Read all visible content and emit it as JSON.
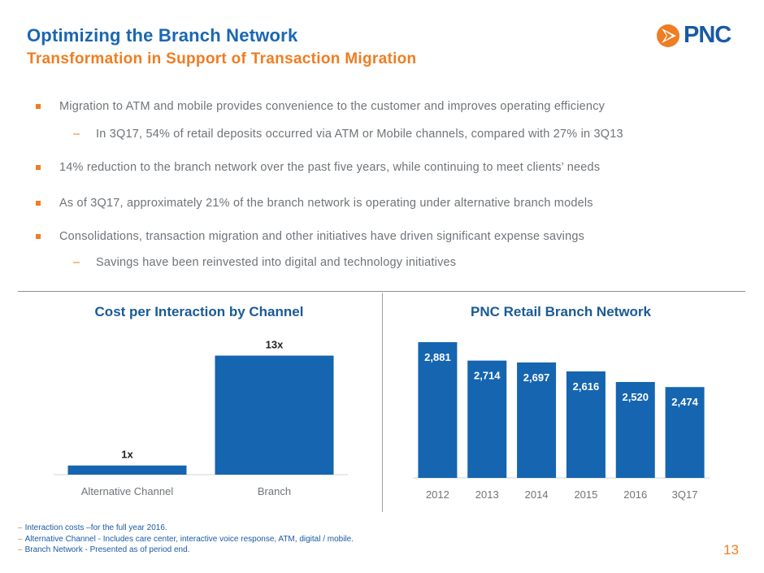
{
  "header": {
    "title": "Optimizing the Branch Network",
    "subtitle": "Transformation in Support of Transaction Migration",
    "logo_text": "PNC",
    "brand_blue": "#1a67b1",
    "brand_orange": "#ef7d22"
  },
  "bullets": [
    {
      "level": 1,
      "text": "Migration to ATM and mobile provides convenience to the customer and improves operating efficiency"
    },
    {
      "level": 2,
      "text": "In 3Q17, 54% of retail deposits occurred via ATM or Mobile channels, compared with 27% in 3Q13"
    },
    {
      "level": 1,
      "text": "14% reduction to the branch network over the past five years, while continuing to meet clients’ needs"
    },
    {
      "level": 1,
      "text": "As of 3Q17, approximately 21% of the branch network is operating under alternative branch models"
    },
    {
      "level": 1,
      "text": "Consolidations, transaction migration and other initiatives have driven significant expense savings"
    },
    {
      "level": 2,
      "text": "Savings have been reinvested into digital and technology initiatives"
    }
  ],
  "chart_data": [
    {
      "type": "bar",
      "title": "Cost per Interaction by Channel",
      "categories": [
        "Alternative Channel",
        "Branch"
      ],
      "values": [
        1,
        13
      ],
      "data_labels": [
        "1x",
        "13x"
      ],
      "ylim": [
        0,
        14.2
      ],
      "bar_color": "#1565b0",
      "grid": false,
      "legend": "none"
    },
    {
      "type": "bar",
      "title": "PNC Retail Branch Network",
      "categories": [
        "2012",
        "2013",
        "2014",
        "2015",
        "2016",
        "3Q17"
      ],
      "values": [
        2881,
        2714,
        2697,
        2616,
        2520,
        2474
      ],
      "data_labels": [
        "2,881",
        "2,714",
        "2,697",
        "2,616",
        "2,520",
        "2,474"
      ],
      "ylim": [
        1650,
        2940
      ],
      "bar_color": "#1565b0",
      "grid": false,
      "legend": "none"
    }
  ],
  "footnotes": [
    "Interaction costs –for the full year 2016.",
    "Alternative Channel - Includes care center, interactive voice response, ATM, digital / mobile.",
    "Branch Network - Presented as of period end."
  ],
  "page_number": "13"
}
